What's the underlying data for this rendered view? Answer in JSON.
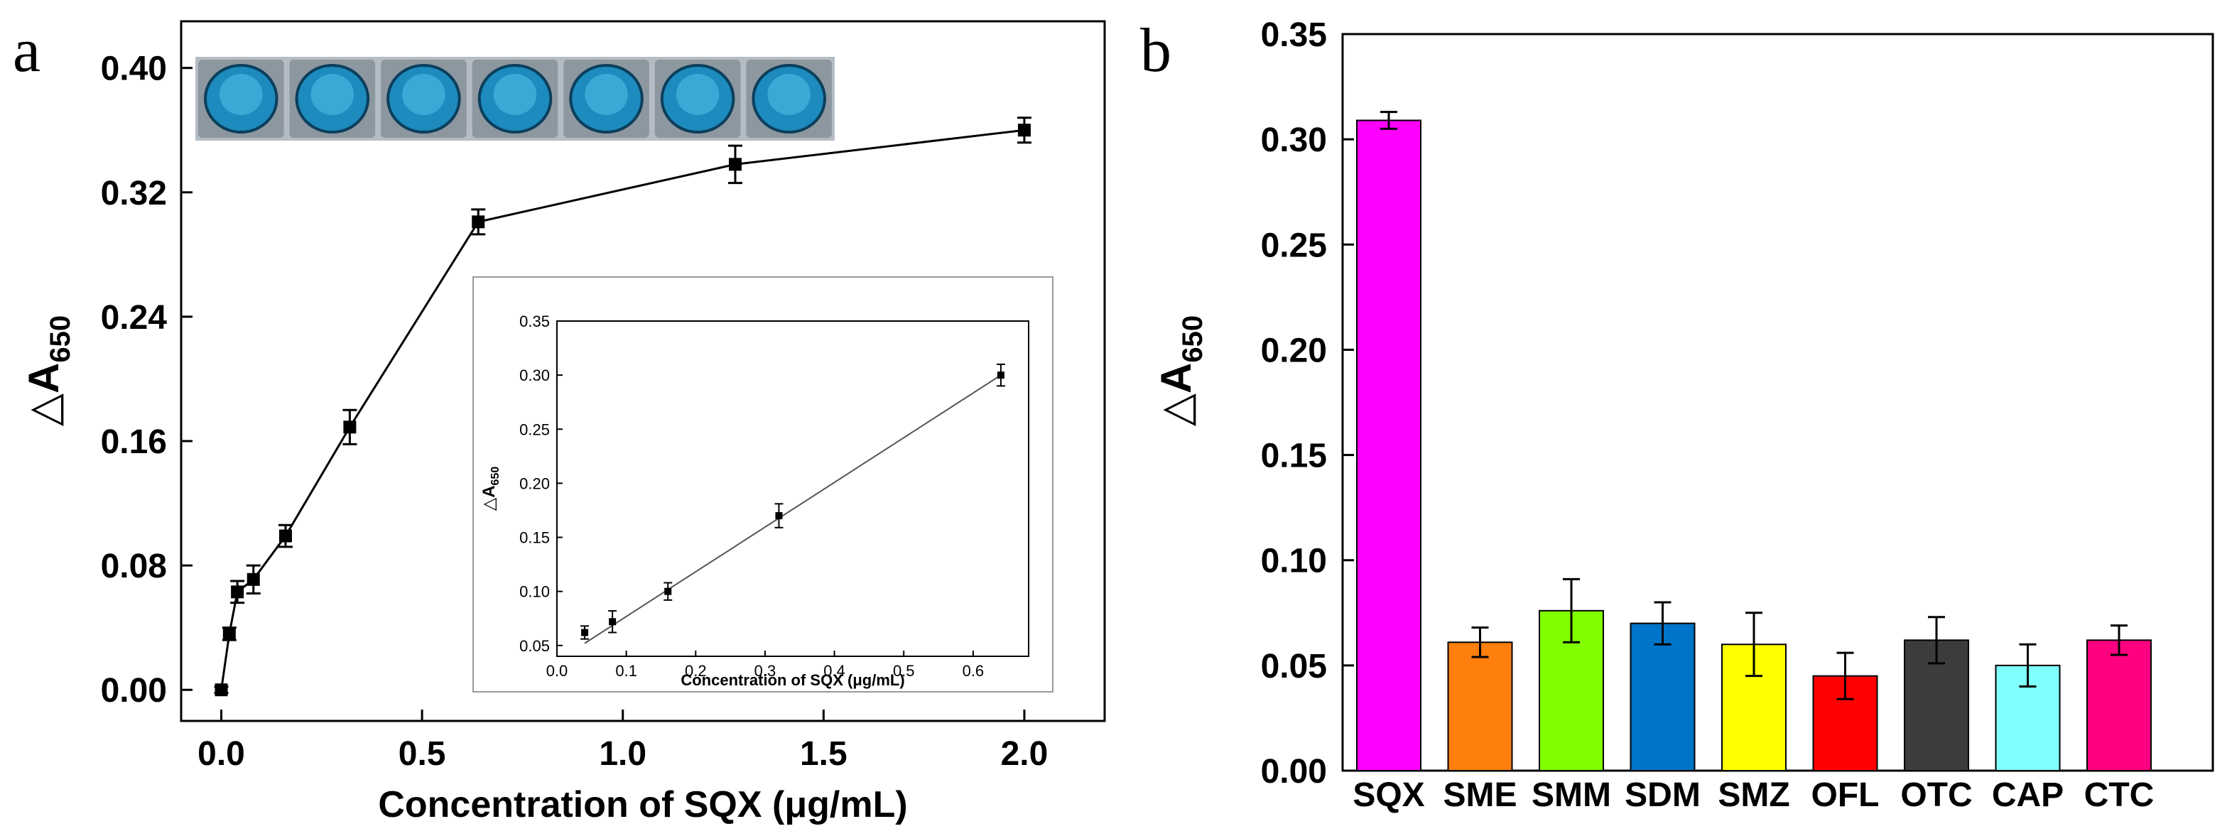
{
  "chart_data": [
    {
      "id": "a",
      "panel_label": "a",
      "type": "line",
      "xlabel": "Concentration of SQX (μg/mL)",
      "ylabel_main": "△A",
      "ylabel_sub": "650",
      "xlim": [
        -0.1,
        2.2
      ],
      "ylim": [
        -0.02,
        0.43
      ],
      "xticks": [
        "0.0",
        "0.5",
        "1.0",
        "1.5",
        "2.0"
      ],
      "yticks": [
        "0.00",
        "0.08",
        "0.16",
        "0.24",
        "0.32",
        "0.40"
      ],
      "marker": "square",
      "series": [
        {
          "x": [
            0,
            0.02,
            0.04,
            0.08,
            0.16,
            0.32,
            0.64,
            1.28,
            2.0
          ],
          "y": [
            0.0,
            0.036,
            0.063,
            0.071,
            0.099,
            0.169,
            0.301,
            0.338,
            0.36
          ],
          "yerr": [
            0.002,
            0.004,
            0.007,
            0.009,
            0.007,
            0.011,
            0.008,
            0.012,
            0.008
          ]
        }
      ],
      "photo_strip": {
        "well_count": 7,
        "well_color": "#1d8bbd"
      },
      "inset": {
        "type": "line",
        "xlabel": "Concentration of SQX (μg/mL)",
        "ylabel_main": "△A",
        "ylabel_sub": "650",
        "xlim": [
          0,
          0.68
        ],
        "ylim": [
          0.04,
          0.35
        ],
        "xticks": [
          "0.0",
          "0.1",
          "0.2",
          "0.3",
          "0.4",
          "0.5",
          "0.6"
        ],
        "yticks": [
          "0.05",
          "0.10",
          "0.15",
          "0.20",
          "0.25",
          "0.30",
          "0.35"
        ],
        "series": [
          {
            "x": [
              0.04,
              0.08,
              0.16,
              0.32,
              0.64
            ],
            "y": [
              0.062,
              0.072,
              0.1,
              0.17,
              0.3
            ],
            "yerr": [
              0.006,
              0.01,
              0.008,
              0.011,
              0.01
            ]
          }
        ],
        "fit_line": {
          "x": [
            0.04,
            0.64
          ],
          "y": [
            0.052,
            0.3
          ]
        }
      }
    },
    {
      "id": "b",
      "panel_label": "b",
      "type": "bar",
      "ylabel_main": "△A",
      "ylabel_sub": "650",
      "ylim": [
        0,
        0.35
      ],
      "yticks": [
        "0.00",
        "0.05",
        "0.10",
        "0.15",
        "0.20",
        "0.25",
        "0.30",
        "0.35"
      ],
      "categories": [
        "SQX",
        "SME",
        "SMM",
        "SDM",
        "SMZ",
        "OFL",
        "OTC",
        "CAP",
        "CTC"
      ],
      "values": [
        0.309,
        0.061,
        0.076,
        0.07,
        0.06,
        0.045,
        0.062,
        0.05,
        0.062
      ],
      "errors": [
        0.004,
        0.007,
        0.015,
        0.01,
        0.015,
        0.011,
        0.011,
        0.01,
        0.007
      ],
      "colors": [
        "#ff00ff",
        "#ff7f0e",
        "#80ff00",
        "#0074c8",
        "#ffff00",
        "#ff0000",
        "#3c3c3c",
        "#80ffff",
        "#ff0080"
      ]
    }
  ]
}
